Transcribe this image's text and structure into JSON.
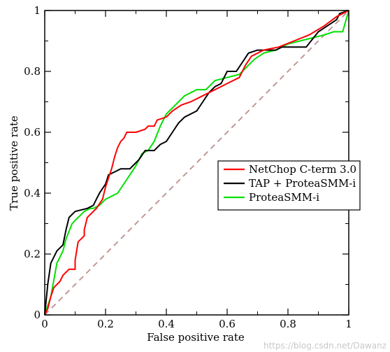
{
  "chart_data": {
    "type": "line",
    "xlabel": "False positive rate",
    "ylabel": "True positive rate",
    "xlim": [
      0,
      1
    ],
    "ylim": [
      0,
      1
    ],
    "x_ticks": [
      0,
      0.2,
      0.4,
      0.6,
      0.8,
      1
    ],
    "y_ticks": [
      0,
      0.2,
      0.4,
      0.6,
      0.8,
      1
    ],
    "x_tick_labels": [
      "0",
      "0.2",
      "0.4",
      "0.6",
      "0.8",
      "1"
    ],
    "y_tick_labels": [
      "0",
      "0.2",
      "0.4",
      "0.6",
      "0.8",
      "1"
    ],
    "grid": false,
    "legend_position": "center-right",
    "diagonal": {
      "color": "#bc8f8f",
      "style": "dashed",
      "points": [
        [
          0,
          0
        ],
        [
          1,
          1
        ]
      ]
    },
    "series": [
      {
        "name": "NetChop C-term 3.0",
        "color": "#ff0000",
        "points": [
          [
            0,
            0
          ],
          [
            0.01,
            0.02
          ],
          [
            0.02,
            0.06
          ],
          [
            0.03,
            0.09
          ],
          [
            0.05,
            0.11
          ],
          [
            0.06,
            0.13
          ],
          [
            0.08,
            0.15
          ],
          [
            0.1,
            0.15
          ],
          [
            0.1,
            0.18
          ],
          [
            0.11,
            0.24
          ],
          [
            0.13,
            0.26
          ],
          [
            0.13,
            0.28
          ],
          [
            0.14,
            0.32
          ],
          [
            0.16,
            0.34
          ],
          [
            0.17,
            0.35
          ],
          [
            0.19,
            0.38
          ],
          [
            0.2,
            0.42
          ],
          [
            0.21,
            0.45
          ],
          [
            0.22,
            0.48
          ],
          [
            0.23,
            0.52
          ],
          [
            0.24,
            0.55
          ],
          [
            0.25,
            0.57
          ],
          [
            0.26,
            0.58
          ],
          [
            0.27,
            0.6
          ],
          [
            0.3,
            0.6
          ],
          [
            0.33,
            0.61
          ],
          [
            0.34,
            0.62
          ],
          [
            0.36,
            0.62
          ],
          [
            0.37,
            0.64
          ],
          [
            0.4,
            0.65
          ],
          [
            0.42,
            0.67
          ],
          [
            0.45,
            0.69
          ],
          [
            0.48,
            0.7
          ],
          [
            0.52,
            0.72
          ],
          [
            0.56,
            0.74
          ],
          [
            0.6,
            0.76
          ],
          [
            0.64,
            0.78
          ],
          [
            0.66,
            0.82
          ],
          [
            0.68,
            0.85
          ],
          [
            0.72,
            0.87
          ],
          [
            0.77,
            0.88
          ],
          [
            0.82,
            0.9
          ],
          [
            0.87,
            0.92
          ],
          [
            0.92,
            0.95
          ],
          [
            0.96,
            0.98
          ],
          [
            1,
            1
          ]
        ]
      },
      {
        "name": "TAP + ProteaSMM-i",
        "color": "#000000",
        "points": [
          [
            0,
            0
          ],
          [
            0.01,
            0.1
          ],
          [
            0.02,
            0.17
          ],
          [
            0.03,
            0.19
          ],
          [
            0.04,
            0.21
          ],
          [
            0.06,
            0.23
          ],
          [
            0.07,
            0.28
          ],
          [
            0.08,
            0.32
          ],
          [
            0.1,
            0.34
          ],
          [
            0.14,
            0.35
          ],
          [
            0.16,
            0.36
          ],
          [
            0.17,
            0.38
          ],
          [
            0.18,
            0.4
          ],
          [
            0.2,
            0.43
          ],
          [
            0.21,
            0.46
          ],
          [
            0.23,
            0.47
          ],
          [
            0.25,
            0.48
          ],
          [
            0.28,
            0.48
          ],
          [
            0.31,
            0.51
          ],
          [
            0.33,
            0.54
          ],
          [
            0.36,
            0.54
          ],
          [
            0.38,
            0.56
          ],
          [
            0.4,
            0.57
          ],
          [
            0.42,
            0.6
          ],
          [
            0.44,
            0.63
          ],
          [
            0.46,
            0.65
          ],
          [
            0.5,
            0.67
          ],
          [
            0.52,
            0.7
          ],
          [
            0.54,
            0.73
          ],
          [
            0.56,
            0.75
          ],
          [
            0.58,
            0.76
          ],
          [
            0.6,
            0.8
          ],
          [
            0.63,
            0.8
          ],
          [
            0.65,
            0.83
          ],
          [
            0.67,
            0.86
          ],
          [
            0.7,
            0.87
          ],
          [
            0.74,
            0.87
          ],
          [
            0.76,
            0.87
          ],
          [
            0.78,
            0.88
          ],
          [
            0.82,
            0.88
          ],
          [
            0.86,
            0.88
          ],
          [
            0.9,
            0.93
          ],
          [
            0.93,
            0.95
          ],
          [
            0.96,
            0.97
          ],
          [
            0.97,
            0.99
          ],
          [
            1,
            1
          ]
        ]
      },
      {
        "name": "ProteaSMM-i",
        "color": "#00e000",
        "points": [
          [
            0,
            0
          ],
          [
            0.01,
            0.03
          ],
          [
            0.02,
            0.06
          ],
          [
            0.04,
            0.17
          ],
          [
            0.06,
            0.21
          ],
          [
            0.07,
            0.25
          ],
          [
            0.09,
            0.3
          ],
          [
            0.1,
            0.31
          ],
          [
            0.12,
            0.33
          ],
          [
            0.13,
            0.34
          ],
          [
            0.15,
            0.35
          ],
          [
            0.16,
            0.35
          ],
          [
            0.18,
            0.36
          ],
          [
            0.2,
            0.38
          ],
          [
            0.22,
            0.39
          ],
          [
            0.24,
            0.4
          ],
          [
            0.26,
            0.43
          ],
          [
            0.28,
            0.46
          ],
          [
            0.3,
            0.49
          ],
          [
            0.32,
            0.53
          ],
          [
            0.34,
            0.54
          ],
          [
            0.36,
            0.57
          ],
          [
            0.38,
            0.62
          ],
          [
            0.4,
            0.66
          ],
          [
            0.43,
            0.69
          ],
          [
            0.46,
            0.72
          ],
          [
            0.5,
            0.74
          ],
          [
            0.53,
            0.74
          ],
          [
            0.56,
            0.77
          ],
          [
            0.6,
            0.78
          ],
          [
            0.64,
            0.79
          ],
          [
            0.66,
            0.81
          ],
          [
            0.69,
            0.84
          ],
          [
            0.72,
            0.86
          ],
          [
            0.76,
            0.87
          ],
          [
            0.8,
            0.89
          ],
          [
            0.84,
            0.9
          ],
          [
            0.88,
            0.91
          ],
          [
            0.92,
            0.92
          ],
          [
            0.95,
            0.93
          ],
          [
            0.98,
            0.93
          ],
          [
            1,
            1
          ]
        ]
      }
    ]
  },
  "watermark": {
    "text": "https://blog.csdn.net/Dawanz"
  }
}
